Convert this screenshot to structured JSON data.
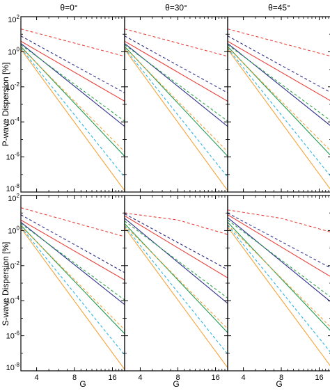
{
  "figure": {
    "column_titles": [
      "θ=0°",
      "θ=30°",
      "θ=45°"
    ],
    "row_ylabels": [
      "P-wave Dispersion [%]",
      "S-wave Dispersion [%]"
    ],
    "xlabel": "G"
  },
  "chart_data": {
    "type": "line",
    "layout": {
      "rows": 2,
      "cols": 3
    },
    "x_scale": "log",
    "y_scale": "log",
    "xlim": [
      3,
      20
    ],
    "ylim": [
      1e-08,
      100
    ],
    "x_ticks": [
      4,
      8,
      16
    ],
    "y_ticks": [
      {
        "exp": "2",
        "value": 100
      },
      {
        "exp": "0",
        "value": 1
      },
      {
        "exp": "-2",
        "value": 0.01
      },
      {
        "exp": "-4",
        "value": 0.0001
      },
      {
        "exp": "-6",
        "value": 1e-06
      },
      {
        "exp": "-8",
        "value": 1e-08
      }
    ],
    "series_styles": [
      {
        "key": "red_dashed",
        "color": "#e8413b",
        "dash": true
      },
      {
        "key": "navy_dashed",
        "color": "#2e2e8c",
        "dash": true
      },
      {
        "key": "red_solid",
        "color": "#e8413b",
        "dash": false
      },
      {
        "key": "navy_solid",
        "color": "#2e2e8c",
        "dash": false
      },
      {
        "key": "green_dashed",
        "color": "#2ea84a",
        "dash": true
      },
      {
        "key": "green_solid",
        "color": "#1f9a52",
        "dash": false
      },
      {
        "key": "orange_dashed",
        "color": "#f5a33a",
        "dash": true
      },
      {
        "key": "cyan_dashed",
        "color": "#2ab4e6",
        "dash": true
      },
      {
        "key": "orange_solid",
        "color": "#f5a33a",
        "dash": false
      }
    ],
    "panels": [
      {
        "row": 0,
        "col": 0,
        "series": [
          {
            "style": "red_dashed",
            "x": [
              3,
              20
            ],
            "y": [
              20,
              0.55
            ]
          },
          {
            "style": "navy_dashed",
            "x": [
              3,
              20
            ],
            "y": [
              8,
              0.0045
            ]
          },
          {
            "style": "red_solid",
            "x": [
              3,
              20
            ],
            "y": [
              4,
              0.0015
            ]
          },
          {
            "style": "navy_solid",
            "x": [
              3,
              20
            ],
            "y": [
              3,
              5.5e-05
            ]
          },
          {
            "style": "green_dashed",
            "x": [
              3,
              20
            ],
            "y": [
              2.5,
              0.00011
            ]
          },
          {
            "style": "green_solid",
            "x": [
              3,
              20
            ],
            "y": [
              2,
              1.1e-06
            ]
          },
          {
            "style": "orange_dashed",
            "x": [
              3,
              20
            ],
            "y": [
              1.8,
              2e-06
            ]
          },
          {
            "style": "cyan_dashed",
            "x": [
              3,
              20
            ],
            "y": [
              1.6,
              7e-08
            ]
          },
          {
            "style": "orange_solid",
            "x": [
              3,
              20
            ],
            "y": [
              1.4,
              1.2e-08
            ]
          }
        ]
      },
      {
        "row": 0,
        "col": 1,
        "series": [
          {
            "style": "red_dashed",
            "x": [
              3,
              20
            ],
            "y": [
              20,
              0.55
            ]
          },
          {
            "style": "navy_dashed",
            "x": [
              3,
              20
            ],
            "y": [
              8,
              0.0045
            ]
          },
          {
            "style": "red_solid",
            "x": [
              3,
              20
            ],
            "y": [
              4,
              0.0015
            ]
          },
          {
            "style": "navy_solid",
            "x": [
              3,
              20
            ],
            "y": [
              3,
              5.5e-05
            ]
          },
          {
            "style": "green_dashed",
            "x": [
              3,
              20
            ],
            "y": [
              2.5,
              0.00011
            ]
          },
          {
            "style": "green_solid",
            "x": [
              3,
              20
            ],
            "y": [
              2,
              1.1e-06
            ]
          },
          {
            "style": "orange_dashed",
            "x": [
              3,
              20
            ],
            "y": [
              1.8,
              2e-06
            ]
          },
          {
            "style": "cyan_dashed",
            "x": [
              3,
              20
            ],
            "y": [
              1.6,
              7e-08
            ]
          },
          {
            "style": "orange_solid",
            "x": [
              3,
              20
            ],
            "y": [
              1.4,
              1.2e-08
            ]
          }
        ]
      },
      {
        "row": 0,
        "col": 2,
        "series": [
          {
            "style": "red_dashed",
            "x": [
              3,
              20
            ],
            "y": [
              20,
              0.55
            ]
          },
          {
            "style": "navy_dashed",
            "x": [
              3,
              20
            ],
            "y": [
              8,
              0.0045
            ]
          },
          {
            "style": "red_solid",
            "x": [
              3,
              20
            ],
            "y": [
              4,
              0.0015
            ]
          },
          {
            "style": "navy_solid",
            "x": [
              3,
              20
            ],
            "y": [
              3,
              5.5e-05
            ]
          },
          {
            "style": "green_dashed",
            "x": [
              3,
              20
            ],
            "y": [
              2.5,
              0.00011
            ]
          },
          {
            "style": "green_solid",
            "x": [
              3,
              20
            ],
            "y": [
              2,
              1.1e-06
            ]
          },
          {
            "style": "orange_dashed",
            "x": [
              3,
              20
            ],
            "y": [
              1.8,
              2e-06
            ]
          },
          {
            "style": "cyan_dashed",
            "x": [
              3,
              20
            ],
            "y": [
              1.6,
              7e-08
            ]
          },
          {
            "style": "orange_solid",
            "x": [
              3,
              20
            ],
            "y": [
              1.4,
              1.2e-08
            ]
          }
        ]
      },
      {
        "row": 1,
        "col": 0,
        "series": [
          {
            "style": "red_dashed",
            "x": [
              3,
              20
            ],
            "y": [
              20,
              0.45
            ]
          },
          {
            "style": "navy_dashed",
            "x": [
              3,
              20
            ],
            "y": [
              8,
              0.004
            ]
          },
          {
            "style": "red_solid",
            "x": [
              3,
              20
            ],
            "y": [
              4,
              0.0015
            ]
          },
          {
            "style": "navy_solid",
            "x": [
              3,
              20
            ],
            "y": [
              3,
              6e-05
            ]
          },
          {
            "style": "green_dashed",
            "x": [
              3,
              20
            ],
            "y": [
              2.5,
              0.00011
            ]
          },
          {
            "style": "green_solid",
            "x": [
              3,
              20
            ],
            "y": [
              2,
              1.3e-06
            ]
          },
          {
            "style": "orange_dashed",
            "x": [
              3,
              20
            ],
            "y": [
              1.8,
              2.2e-06
            ]
          },
          {
            "style": "cyan_dashed",
            "x": [
              3,
              20
            ],
            "y": [
              1.6,
              8e-08
            ]
          },
          {
            "style": "orange_solid",
            "x": [
              3,
              20
            ],
            "y": [
              1.4,
              1.2e-08
            ]
          }
        ]
      },
      {
        "row": 1,
        "col": 1,
        "series": [
          {
            "style": "red_dashed",
            "x": [
              3,
              8,
              20
            ],
            "y": [
              10,
              4,
              0.6
            ]
          },
          {
            "style": "navy_dashed",
            "x": [
              3,
              20
            ],
            "y": [
              9,
              0.006
            ]
          },
          {
            "style": "red_solid",
            "x": [
              3,
              20
            ],
            "y": [
              7,
              0.002
            ]
          },
          {
            "style": "navy_solid",
            "x": [
              3,
              20
            ],
            "y": [
              5,
              7e-05
            ]
          },
          {
            "style": "green_dashed",
            "x": [
              3,
              20
            ],
            "y": [
              3.5,
              0.00014
            ]
          },
          {
            "style": "green_solid",
            "x": [
              3,
              20
            ],
            "y": [
              2.5,
              1.5e-06
            ]
          },
          {
            "style": "orange_dashed",
            "x": [
              3,
              20
            ],
            "y": [
              2,
              2.5e-06
            ]
          },
          {
            "style": "cyan_dashed",
            "x": [
              3,
              20
            ],
            "y": [
              1.8,
              9e-08
            ]
          },
          {
            "style": "orange_solid",
            "x": [
              3,
              20
            ],
            "y": [
              1.5,
              1.5e-08
            ]
          }
        ]
      },
      {
        "row": 1,
        "col": 2,
        "series": [
          {
            "style": "red_dashed",
            "x": [
              3,
              8,
              20
            ],
            "y": [
              15,
              5,
              0.8
            ]
          },
          {
            "style": "navy_dashed",
            "x": [
              3,
              20
            ],
            "y": [
              10,
              0.007
            ]
          },
          {
            "style": "red_solid",
            "x": [
              3,
              20
            ],
            "y": [
              8,
              0.0022
            ]
          },
          {
            "style": "navy_solid",
            "x": [
              3,
              20
            ],
            "y": [
              5.5,
              8e-05
            ]
          },
          {
            "style": "green_dashed",
            "x": [
              3,
              20
            ],
            "y": [
              4,
              0.00015
            ]
          },
          {
            "style": "green_solid",
            "x": [
              3,
              20
            ],
            "y": [
              3,
              1.7e-06
            ]
          },
          {
            "style": "orange_dashed",
            "x": [
              3,
              20
            ],
            "y": [
              2.2,
              2.8e-06
            ]
          },
          {
            "style": "cyan_dashed",
            "x": [
              3,
              20
            ],
            "y": [
              2,
              1e-07
            ]
          },
          {
            "style": "orange_solid",
            "x": [
              3,
              20
            ],
            "y": [
              1.6,
              1.6e-08
            ]
          }
        ]
      }
    ]
  }
}
